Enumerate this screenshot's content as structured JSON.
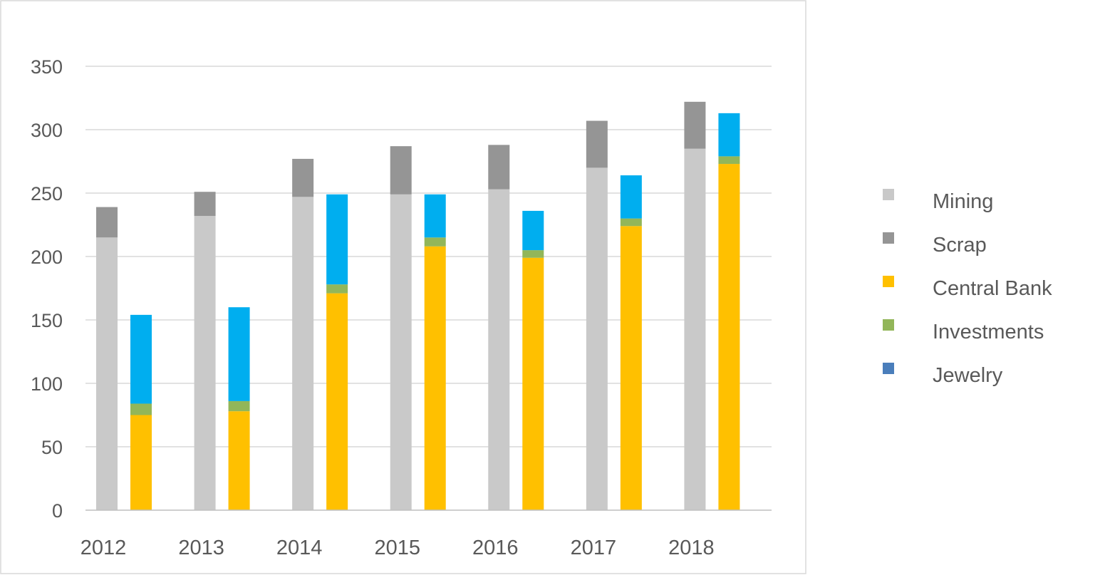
{
  "chart_data": {
    "type": "bar",
    "subtype": "grouped-stacked",
    "categories": [
      "2012",
      "2013",
      "2014",
      "2015",
      "2016",
      "2017",
      "2018"
    ],
    "ylim": [
      0,
      350
    ],
    "yticks": [
      0,
      50,
      100,
      150,
      200,
      250,
      300,
      350
    ],
    "grid": true,
    "legend_position": "right",
    "stacks": [
      {
        "series": [
          {
            "name": "Mining",
            "color": "#c9c9c9",
            "values": [
              215,
              232,
              247,
              249,
              253,
              270,
              285
            ]
          },
          {
            "name": "Scrap",
            "color": "#959595",
            "values": [
              24,
              19,
              30,
              38,
              35,
              37,
              37
            ]
          }
        ]
      },
      {
        "series": [
          {
            "name": "Central Bank",
            "color": "#ffc000",
            "values": [
              75,
              78,
              171,
              208,
              199,
              224,
              273
            ]
          },
          {
            "name": "Investments",
            "color": "#92b659",
            "values": [
              9,
              8,
              7,
              7,
              6,
              6,
              6
            ]
          },
          {
            "name": "Jewelry",
            "color": "#00aeef",
            "values": [
              70,
              74,
              71,
              34,
              31,
              34,
              34
            ]
          }
        ]
      }
    ],
    "legend": [
      {
        "name": "Mining",
        "color": "#c9c9c9"
      },
      {
        "name": "Scrap",
        "color": "#959595"
      },
      {
        "name": "Central Bank",
        "color": "#ffc000"
      },
      {
        "name": "Investments",
        "color": "#92b659"
      },
      {
        "name": "Jewelry",
        "color": "#4a7ebb"
      }
    ]
  }
}
